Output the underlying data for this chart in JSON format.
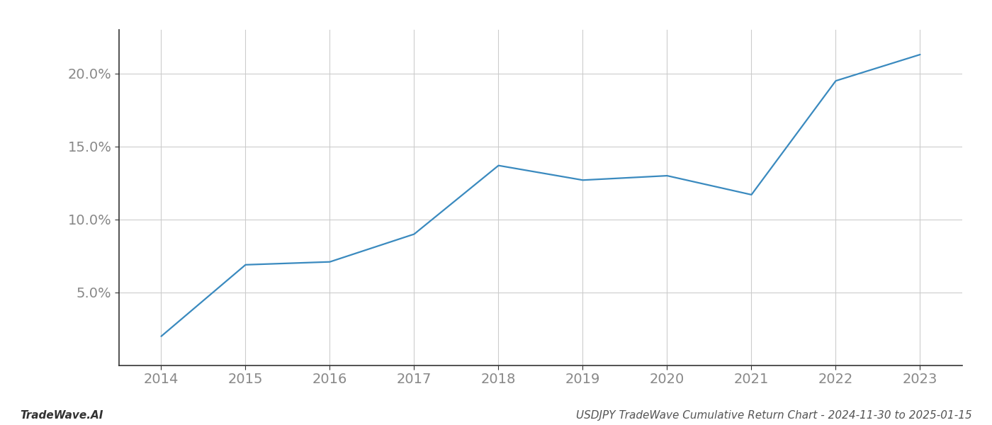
{
  "x_years": [
    2014,
    2015,
    2016,
    2017,
    2018,
    2019,
    2020,
    2021,
    2022,
    2023
  ],
  "y_values": [
    2.0,
    6.9,
    7.1,
    9.0,
    13.7,
    12.7,
    13.0,
    11.7,
    19.5,
    21.3
  ],
  "line_color": "#3a8abf",
  "line_width": 1.6,
  "background_color": "#ffffff",
  "grid_color": "#cccccc",
  "ylabel_ticks": [
    5.0,
    10.0,
    15.0,
    20.0
  ],
  "xlim": [
    2013.5,
    2023.5
  ],
  "ylim": [
    0,
    23
  ],
  "xlabel_years": [
    2014,
    2015,
    2016,
    2017,
    2018,
    2019,
    2020,
    2021,
    2022,
    2023
  ],
  "footer_left": "TradeWave.AI",
  "footer_right": "USDJPY TradeWave Cumulative Return Chart - 2024-11-30 to 2025-01-15",
  "tick_fontsize": 14,
  "footer_fontsize": 11,
  "spine_color": "#333333",
  "tick_color": "#888888",
  "label_color": "#888888"
}
